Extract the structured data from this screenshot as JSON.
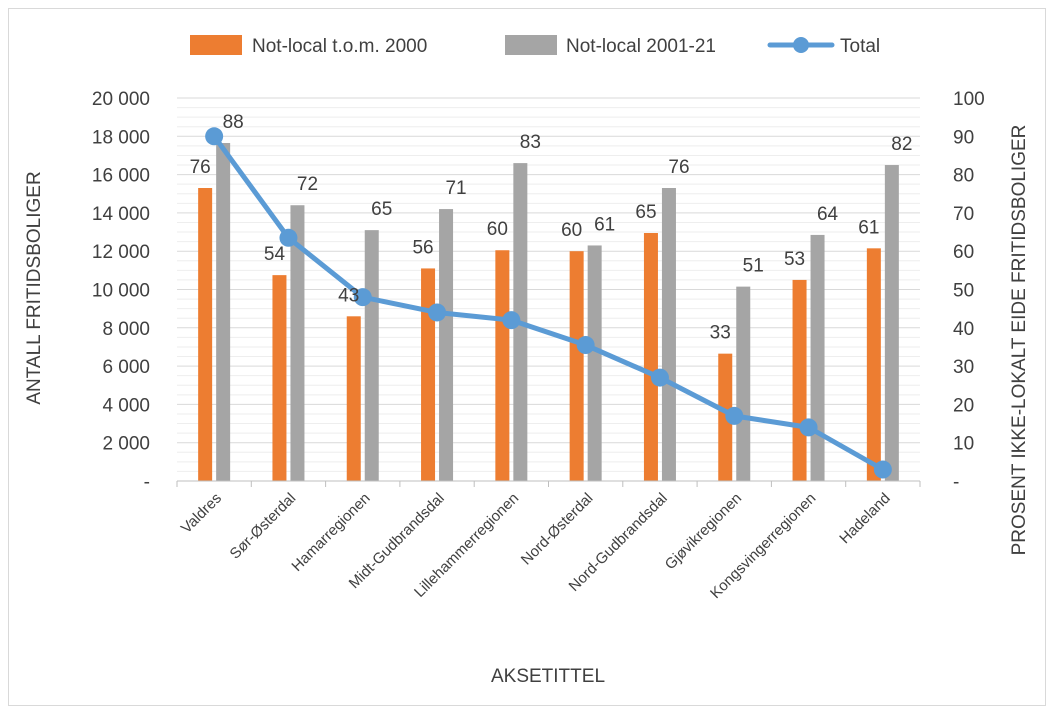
{
  "chart_data": {
    "type": "bar",
    "categories": [
      "Valdres",
      "Sør-Østerdal",
      "Hamarregionen",
      "Midt-Gudbrandsdal",
      "Lillehammerregionen",
      "Nord-Østerdal",
      "Nord-Gudbrandsdal",
      "Gjøvikregionen",
      "Kongsvingerregionen",
      "Hadeland"
    ],
    "series": [
      {
        "name": "Not-local t.o.m. 2000",
        "kind": "bar",
        "axis": "left",
        "color": "#ED7D31",
        "values": [
          15300,
          10750,
          8600,
          11100,
          12050,
          12000,
          12950,
          6650,
          10500,
          12150
        ],
        "labels": [
          "76",
          "54",
          "43",
          "56",
          "60",
          "60",
          "65",
          "33",
          "53",
          "61"
        ]
      },
      {
        "name": "Not-local 2001-21",
        "kind": "bar",
        "axis": "left",
        "color": "#A5A5A5",
        "values": [
          17650,
          14400,
          13100,
          14200,
          16600,
          12300,
          15300,
          10150,
          12850,
          16500
        ],
        "labels": [
          "88",
          "72",
          "65",
          "71",
          "83",
          "61",
          "76",
          "51",
          "64",
          "82"
        ]
      },
      {
        "name": "Total",
        "kind": "line",
        "axis": "right",
        "color": "#5B9BD5",
        "values": [
          90,
          63.5,
          48,
          44,
          42,
          35.5,
          27,
          17,
          14,
          3
        ]
      }
    ],
    "xlabel": "AKSETITTEL",
    "ylabel": "ANTALL FRITIDSBOLIGER",
    "y2label": "PROSENT IKKE-LOKALT EIDE FRITIDSBOLIGER",
    "ylim": [
      0,
      20000
    ],
    "y2lim": [
      0,
      100
    ],
    "yticks": [
      "-",
      "2 000",
      "4 000",
      "6 000",
      "8 000",
      "10 000",
      "12 000",
      "14 000",
      "16 000",
      "18 000",
      "20 000"
    ],
    "y2ticks": [
      "-",
      "10",
      "20",
      "30",
      "40",
      "50",
      "60",
      "70",
      "80",
      "90",
      "100"
    ],
    "grid": true,
    "legend": "top"
  }
}
